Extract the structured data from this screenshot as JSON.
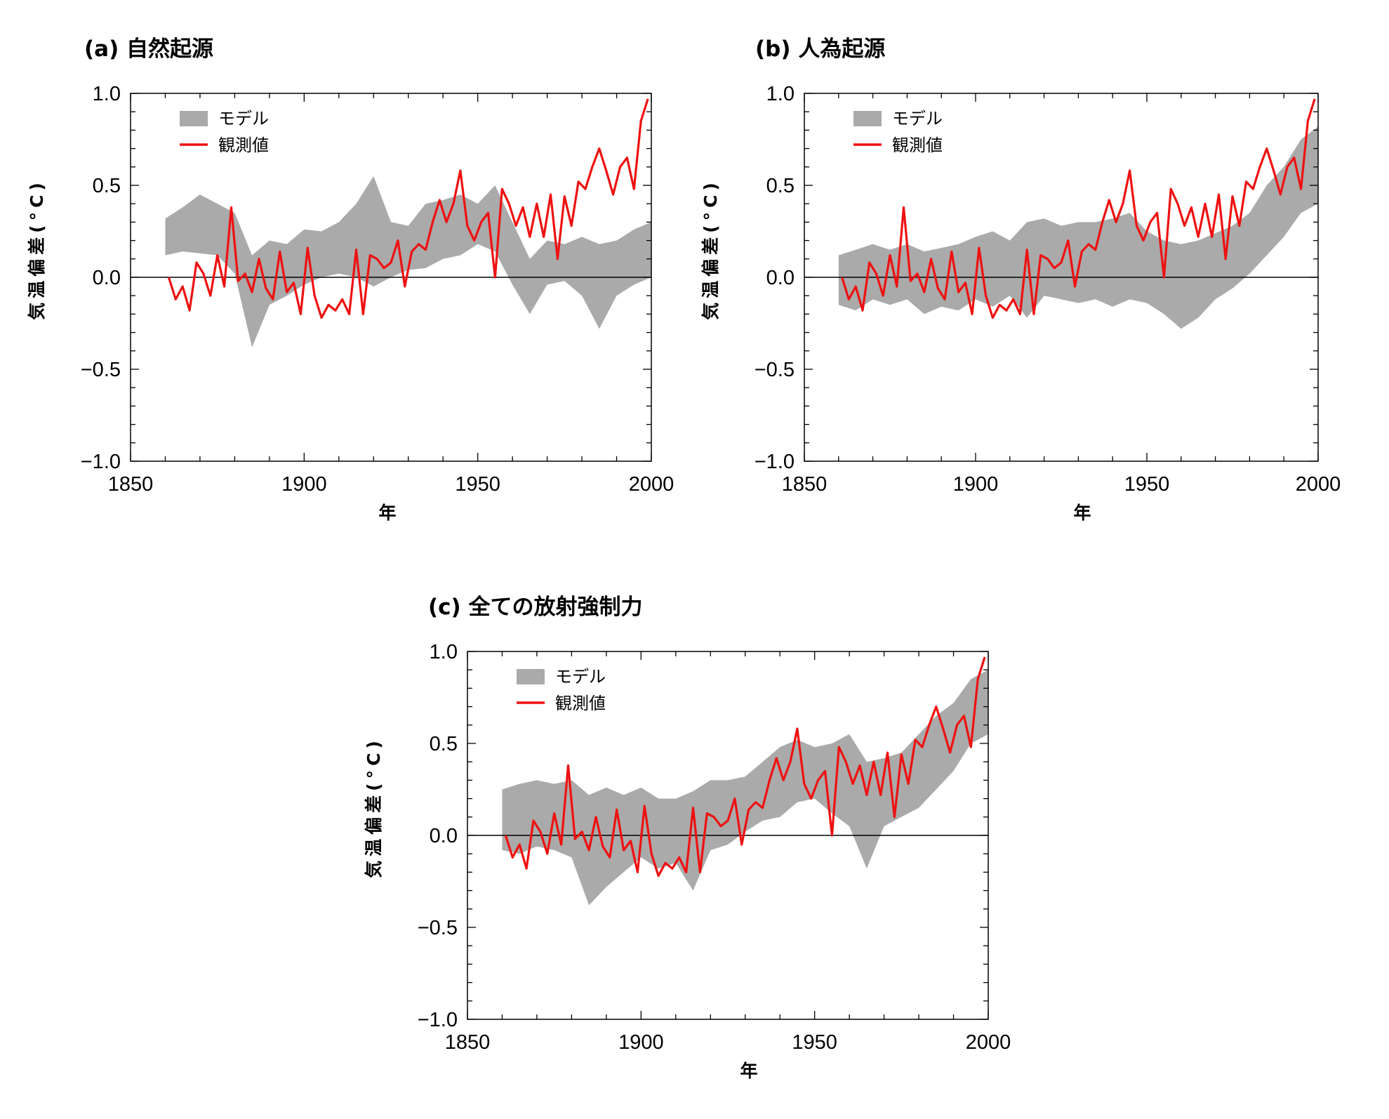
{
  "colors": {
    "model_band": "#aaaaaa",
    "observed": "#ee1111",
    "axis": "#000000"
  },
  "legend": {
    "model": "モデル",
    "observed": "観測値"
  },
  "chart_data": [
    {
      "type": "line",
      "title": "(a) 自然起源",
      "xlabel": "年",
      "ylabel": "気温偏差(°C)",
      "xlim": [
        1850,
        2000
      ],
      "ylim": [
        -1.0,
        1.0
      ],
      "xticks": [
        "1850",
        "1900",
        "1950",
        "2000"
      ],
      "yticks": [
        "1.0",
        "0.5",
        "0.0",
        "−0.5",
        "−1.0"
      ],
      "series": [
        {
          "name": "モデル",
          "kind": "band",
          "x": [
            1860,
            1865,
            1870,
            1875,
            1880,
            1885,
            1890,
            1895,
            1900,
            1905,
            1910,
            1915,
            1920,
            1925,
            1930,
            1935,
            1940,
            1945,
            1950,
            1955,
            1960,
            1965,
            1970,
            1975,
            1980,
            1985,
            1990,
            1995,
            2000
          ],
          "lower": [
            0.12,
            0.14,
            0.13,
            0.12,
            0.02,
            -0.38,
            -0.15,
            -0.1,
            -0.04,
            0.0,
            0.02,
            0.0,
            -0.05,
            0.0,
            0.04,
            0.05,
            0.1,
            0.12,
            0.18,
            0.14,
            -0.04,
            -0.2,
            -0.04,
            -0.02,
            -0.1,
            -0.28,
            -0.1,
            -0.04,
            0.0
          ],
          "upper": [
            0.32,
            0.38,
            0.45,
            0.4,
            0.35,
            0.12,
            0.2,
            0.18,
            0.26,
            0.25,
            0.3,
            0.4,
            0.55,
            0.3,
            0.28,
            0.4,
            0.42,
            0.45,
            0.4,
            0.5,
            0.3,
            0.1,
            0.2,
            0.18,
            0.22,
            0.18,
            0.2,
            0.26,
            0.3
          ]
        },
        {
          "name": "観測値",
          "kind": "line",
          "x": [
            1861,
            1863,
            1865,
            1867,
            1869,
            1871,
            1873,
            1875,
            1877,
            1879,
            1881,
            1883,
            1885,
            1887,
            1889,
            1891,
            1893,
            1895,
            1897,
            1899,
            1901,
            1903,
            1905,
            1907,
            1909,
            1911,
            1913,
            1915,
            1917,
            1919,
            1921,
            1923,
            1925,
            1927,
            1929,
            1931,
            1933,
            1935,
            1937,
            1939,
            1941,
            1943,
            1945,
            1947,
            1949,
            1951,
            1953,
            1955,
            1957,
            1959,
            1961,
            1963,
            1965,
            1967,
            1969,
            1971,
            1973,
            1975,
            1977,
            1979,
            1981,
            1983,
            1985,
            1987,
            1989,
            1991,
            1993,
            1995,
            1997,
            1999
          ],
          "y": [
            0.0,
            -0.12,
            -0.05,
            -0.18,
            0.08,
            0.02,
            -0.1,
            0.12,
            -0.05,
            0.38,
            -0.02,
            0.02,
            -0.08,
            0.1,
            -0.06,
            -0.12,
            0.14,
            -0.08,
            -0.03,
            -0.2,
            0.16,
            -0.1,
            -0.22,
            -0.15,
            -0.18,
            -0.12,
            -0.2,
            0.15,
            -0.2,
            0.12,
            0.1,
            0.05,
            0.08,
            0.2,
            -0.05,
            0.14,
            0.18,
            0.15,
            0.3,
            0.42,
            0.3,
            0.4,
            0.58,
            0.28,
            0.2,
            0.3,
            0.35,
            0.0,
            0.48,
            0.4,
            0.28,
            0.38,
            0.22,
            0.4,
            0.22,
            0.45,
            0.1,
            0.44,
            0.28,
            0.52,
            0.48,
            0.6,
            0.7,
            0.58,
            0.45,
            0.6,
            0.65,
            0.48,
            0.85,
            0.97
          ]
        }
      ]
    },
    {
      "type": "line",
      "title": "(b) 人為起源",
      "xlabel": "年",
      "ylabel": "気温偏差(°C)",
      "xlim": [
        1850,
        2000
      ],
      "ylim": [
        -1.0,
        1.0
      ],
      "xticks": [
        "1850",
        "1900",
        "1950",
        "2000"
      ],
      "yticks": [
        "1.0",
        "0.5",
        "0.0",
        "−0.5",
        "−1.0"
      ],
      "series": [
        {
          "name": "モデル",
          "kind": "band",
          "x": [
            1860,
            1865,
            1870,
            1875,
            1880,
            1885,
            1890,
            1895,
            1900,
            1905,
            1910,
            1915,
            1920,
            1925,
            1930,
            1935,
            1940,
            1945,
            1950,
            1955,
            1960,
            1965,
            1970,
            1975,
            1980,
            1985,
            1990,
            1995,
            2000
          ],
          "lower": [
            -0.15,
            -0.18,
            -0.12,
            -0.15,
            -0.12,
            -0.2,
            -0.16,
            -0.18,
            -0.12,
            -0.16,
            -0.1,
            -0.22,
            -0.1,
            -0.12,
            -0.14,
            -0.12,
            -0.16,
            -0.12,
            -0.14,
            -0.2,
            -0.28,
            -0.22,
            -0.12,
            -0.06,
            0.02,
            0.12,
            0.22,
            0.35,
            0.4
          ],
          "upper": [
            0.12,
            0.15,
            0.18,
            0.15,
            0.18,
            0.14,
            0.16,
            0.18,
            0.22,
            0.25,
            0.2,
            0.3,
            0.32,
            0.28,
            0.3,
            0.3,
            0.32,
            0.35,
            0.25,
            0.2,
            0.18,
            0.2,
            0.24,
            0.28,
            0.35,
            0.5,
            0.6,
            0.75,
            0.82
          ]
        },
        {
          "name": "観測値",
          "kind": "line",
          "x": [
            1861,
            1863,
            1865,
            1867,
            1869,
            1871,
            1873,
            1875,
            1877,
            1879,
            1881,
            1883,
            1885,
            1887,
            1889,
            1891,
            1893,
            1895,
            1897,
            1899,
            1901,
            1903,
            1905,
            1907,
            1909,
            1911,
            1913,
            1915,
            1917,
            1919,
            1921,
            1923,
            1925,
            1927,
            1929,
            1931,
            1933,
            1935,
            1937,
            1939,
            1941,
            1943,
            1945,
            1947,
            1949,
            1951,
            1953,
            1955,
            1957,
            1959,
            1961,
            1963,
            1965,
            1967,
            1969,
            1971,
            1973,
            1975,
            1977,
            1979,
            1981,
            1983,
            1985,
            1987,
            1989,
            1991,
            1993,
            1995,
            1997,
            1999
          ],
          "y": [
            0.0,
            -0.12,
            -0.05,
            -0.18,
            0.08,
            0.02,
            -0.1,
            0.12,
            -0.05,
            0.38,
            -0.02,
            0.02,
            -0.08,
            0.1,
            -0.06,
            -0.12,
            0.14,
            -0.08,
            -0.03,
            -0.2,
            0.16,
            -0.1,
            -0.22,
            -0.15,
            -0.18,
            -0.12,
            -0.2,
            0.15,
            -0.2,
            0.12,
            0.1,
            0.05,
            0.08,
            0.2,
            -0.05,
            0.14,
            0.18,
            0.15,
            0.3,
            0.42,
            0.3,
            0.4,
            0.58,
            0.28,
            0.2,
            0.3,
            0.35,
            0.0,
            0.48,
            0.4,
            0.28,
            0.38,
            0.22,
            0.4,
            0.22,
            0.45,
            0.1,
            0.44,
            0.28,
            0.52,
            0.48,
            0.6,
            0.7,
            0.58,
            0.45,
            0.6,
            0.65,
            0.48,
            0.85,
            0.97
          ]
        }
      ]
    },
    {
      "type": "line",
      "title": "(c) 全ての放射強制力",
      "xlabel": "年",
      "ylabel": "気温偏差(°C)",
      "xlim": [
        1850,
        2000
      ],
      "ylim": [
        -1.0,
        1.0
      ],
      "xticks": [
        "1850",
        "1900",
        "1950",
        "2000"
      ],
      "yticks": [
        "1.0",
        "0.5",
        "0.0",
        "−0.5",
        "−1.0"
      ],
      "series": [
        {
          "name": "モデル",
          "kind": "band",
          "x": [
            1860,
            1865,
            1870,
            1875,
            1880,
            1885,
            1890,
            1895,
            1900,
            1905,
            1910,
            1915,
            1920,
            1925,
            1930,
            1935,
            1940,
            1945,
            1950,
            1955,
            1960,
            1965,
            1970,
            1975,
            1980,
            1985,
            1990,
            1995,
            2000
          ],
          "lower": [
            -0.08,
            -0.1,
            -0.06,
            -0.08,
            -0.12,
            -0.38,
            -0.28,
            -0.2,
            -0.12,
            -0.18,
            -0.15,
            -0.3,
            -0.08,
            -0.05,
            0.02,
            0.08,
            0.1,
            0.18,
            0.2,
            0.12,
            0.05,
            -0.18,
            0.05,
            0.1,
            0.15,
            0.25,
            0.35,
            0.5,
            0.55
          ],
          "upper": [
            0.25,
            0.28,
            0.3,
            0.28,
            0.3,
            0.22,
            0.26,
            0.22,
            0.26,
            0.2,
            0.2,
            0.24,
            0.3,
            0.3,
            0.32,
            0.4,
            0.48,
            0.52,
            0.48,
            0.5,
            0.55,
            0.4,
            0.42,
            0.45,
            0.55,
            0.65,
            0.72,
            0.85,
            0.9
          ]
        },
        {
          "name": "観測値",
          "kind": "line",
          "x": [
            1861,
            1863,
            1865,
            1867,
            1869,
            1871,
            1873,
            1875,
            1877,
            1879,
            1881,
            1883,
            1885,
            1887,
            1889,
            1891,
            1893,
            1895,
            1897,
            1899,
            1901,
            1903,
            1905,
            1907,
            1909,
            1911,
            1913,
            1915,
            1917,
            1919,
            1921,
            1923,
            1925,
            1927,
            1929,
            1931,
            1933,
            1935,
            1937,
            1939,
            1941,
            1943,
            1945,
            1947,
            1949,
            1951,
            1953,
            1955,
            1957,
            1959,
            1961,
            1963,
            1965,
            1967,
            1969,
            1971,
            1973,
            1975,
            1977,
            1979,
            1981,
            1983,
            1985,
            1987,
            1989,
            1991,
            1993,
            1995,
            1997,
            1999
          ],
          "y": [
            0.0,
            -0.12,
            -0.05,
            -0.18,
            0.08,
            0.02,
            -0.1,
            0.12,
            -0.05,
            0.38,
            -0.02,
            0.02,
            -0.08,
            0.1,
            -0.06,
            -0.12,
            0.14,
            -0.08,
            -0.03,
            -0.2,
            0.16,
            -0.1,
            -0.22,
            -0.15,
            -0.18,
            -0.12,
            -0.2,
            0.15,
            -0.2,
            0.12,
            0.1,
            0.05,
            0.08,
            0.2,
            -0.05,
            0.14,
            0.18,
            0.15,
            0.3,
            0.42,
            0.3,
            0.4,
            0.58,
            0.28,
            0.2,
            0.3,
            0.35,
            0.0,
            0.48,
            0.4,
            0.28,
            0.38,
            0.22,
            0.4,
            0.22,
            0.45,
            0.1,
            0.44,
            0.28,
            0.52,
            0.48,
            0.6,
            0.7,
            0.58,
            0.45,
            0.6,
            0.65,
            0.48,
            0.85,
            0.97
          ]
        }
      ]
    }
  ]
}
